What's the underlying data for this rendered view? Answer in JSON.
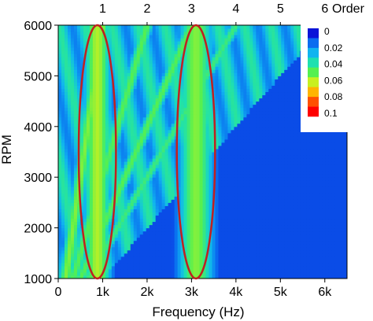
{
  "chart_data": {
    "type": "heatmap",
    "subtype": "order-tracking-colormap",
    "title": "",
    "xlabel": "Frequency (Hz)",
    "ylabel": "RPM",
    "top_axis_label": "Order",
    "xlim": [
      0,
      6500
    ],
    "ylim": [
      1000,
      6000
    ],
    "x_ticks": [
      0,
      1000,
      2000,
      3000,
      4000,
      5000,
      6000
    ],
    "x_tick_labels": [
      "0",
      "1k",
      "2k",
      "3k",
      "4k",
      "5k",
      "6k"
    ],
    "y_ticks": [
      1000,
      2000,
      3000,
      4000,
      5000,
      6000
    ],
    "y_tick_labels": [
      "1000",
      "2000",
      "3000",
      "4000",
      "5000",
      "6000"
    ],
    "order_ticks": [
      1,
      2,
      3,
      4,
      5,
      6
    ],
    "order_tick_labels": [
      "1",
      "2",
      "3",
      "4",
      "5",
      "6"
    ],
    "order_reference_rpm": 6000,
    "colorbar": {
      "min": 0,
      "max": 0.1,
      "ticks": [
        0,
        0.02,
        0.04,
        0.06,
        0.08,
        0.1
      ],
      "tick_labels": [
        "0",
        "0.02",
        "0.04",
        "0.06",
        "0.08",
        "0.1"
      ],
      "colors": [
        "#0a14d8",
        "#0a6cf0",
        "#10b4f0",
        "#1ee0b0",
        "#55f050",
        "#c8f020",
        "#ffb400",
        "#ff5000",
        "#ff0000"
      ]
    },
    "bands": [
      {
        "kind": "frequency",
        "center_hz": 880,
        "width_hz": 300,
        "intensity": 0.06
      },
      {
        "kind": "frequency",
        "center_hz": 3100,
        "width_hz": 380,
        "intensity": 0.055
      },
      {
        "kind": "order",
        "order": 1,
        "intensity": 0.055
      },
      {
        "kind": "order",
        "order": 2,
        "intensity": 0.05
      },
      {
        "kind": "order",
        "order": 3,
        "intensity": 0.05
      },
      {
        "kind": "order",
        "order": 4,
        "intensity": 0.045
      }
    ],
    "highlight_ellipses": [
      {
        "center_hz": 880,
        "center_rpm": 3500,
        "half_width_hz": 420,
        "half_height_rpm": 2500,
        "color": "#c02020"
      },
      {
        "center_hz": 3100,
        "center_rpm": 3500,
        "half_width_hz": 430,
        "half_height_rpm": 2500,
        "color": "#c02020"
      }
    ]
  }
}
